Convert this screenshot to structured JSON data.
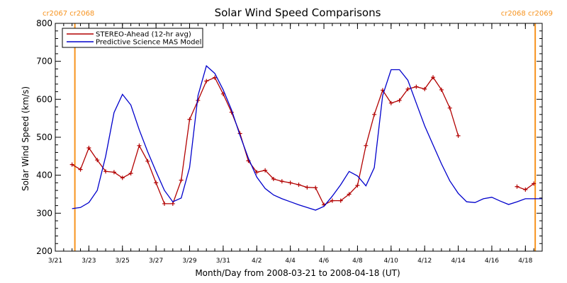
{
  "chart_data": {
    "type": "line",
    "title": "Solar Wind Speed Comparisons",
    "xlabel": "Month/Day from 2008-03-21 to 2008-04-18 (UT)",
    "ylabel": "Solar Wind Speed (km/s)",
    "xlim": [
      "2008-03-21",
      "2008-04-19"
    ],
    "ylim": [
      200,
      800
    ],
    "x_ticks": [
      {
        "date": "2008-03-21",
        "label": "3/21"
      },
      {
        "date": "2008-03-23",
        "label": "3/23"
      },
      {
        "date": "2008-03-25",
        "label": "3/25"
      },
      {
        "date": "2008-03-27",
        "label": "3/27"
      },
      {
        "date": "2008-03-29",
        "label": "3/29"
      },
      {
        "date": "2008-03-31",
        "label": "3/31"
      },
      {
        "date": "2008-04-02",
        "label": "4/2"
      },
      {
        "date": "2008-04-04",
        "label": "4/4"
      },
      {
        "date": "2008-04-06",
        "label": "4/6"
      },
      {
        "date": "2008-04-08",
        "label": "4/8"
      },
      {
        "date": "2008-04-10",
        "label": "4/10"
      },
      {
        "date": "2008-04-12",
        "label": "4/12"
      },
      {
        "date": "2008-04-14",
        "label": "4/14"
      },
      {
        "date": "2008-04-16",
        "label": "4/16"
      },
      {
        "date": "2008-04-18",
        "label": "4/18"
      }
    ],
    "y_ticks": [
      200,
      300,
      400,
      500,
      600,
      700,
      800
    ],
    "legend_position": "top-left",
    "colors": {
      "stereo": "#b20000",
      "model": "#0000cc",
      "cr_line": "#f7931e"
    },
    "cr_boundaries": [
      {
        "date": "2008-03-22 04:00",
        "label": "cr2067 cr2068",
        "align": "left"
      },
      {
        "date": "2008-04-18 14:00",
        "label": "cr2068 cr2069",
        "align": "right"
      }
    ],
    "series": [
      {
        "name": "STEREO-Ahead (12-hr avg)",
        "color": "#b20000",
        "marker": "+",
        "segments": [
          [
            [
              "2008-03-22 00:00",
              428
            ],
            [
              "2008-03-22 12:00",
              415
            ],
            [
              "2008-03-23 00:00",
              472
            ],
            [
              "2008-03-23 12:00",
              440
            ],
            [
              "2008-03-24 00:00",
              410
            ],
            [
              "2008-03-24 12:00",
              408
            ],
            [
              "2008-03-25 00:00",
              393
            ],
            [
              "2008-03-25 12:00",
              405
            ],
            [
              "2008-03-26 00:00",
              478
            ],
            [
              "2008-03-26 12:00",
              437
            ],
            [
              "2008-03-27 00:00",
              380
            ],
            [
              "2008-03-27 12:00",
              325
            ],
            [
              "2008-03-28 00:00",
              325
            ],
            [
              "2008-03-28 12:00",
              387
            ],
            [
              "2008-03-29 00:00",
              547
            ],
            [
              "2008-03-29 12:00",
              597
            ],
            [
              "2008-03-30 00:00",
              648
            ],
            [
              "2008-03-30 12:00",
              657
            ],
            [
              "2008-03-31 00:00",
              614
            ],
            [
              "2008-03-31 12:00",
              566
            ],
            [
              "2008-04-01 00:00",
              510
            ],
            [
              "2008-04-01 12:00",
              438
            ],
            [
              "2008-04-02 00:00",
              408
            ],
            [
              "2008-04-02 12:00",
              413
            ],
            [
              "2008-04-03 00:00",
              390
            ],
            [
              "2008-04-03 12:00",
              384
            ],
            [
              "2008-04-04 00:00",
              380
            ],
            [
              "2008-04-04 12:00",
              375
            ],
            [
              "2008-04-05 00:00",
              368
            ],
            [
              "2008-04-05 12:00",
              367
            ],
            [
              "2008-04-06 00:00",
              322
            ],
            [
              "2008-04-06 12:00",
              333
            ],
            [
              "2008-04-07 00:00",
              333
            ],
            [
              "2008-04-07 12:00",
              350
            ],
            [
              "2008-04-08 00:00",
              373
            ],
            [
              "2008-04-08 12:00",
              478
            ],
            [
              "2008-04-09 00:00",
              560
            ],
            [
              "2008-04-09 12:00",
              624
            ],
            [
              "2008-04-10 00:00",
              590
            ],
            [
              "2008-04-10 12:00",
              597
            ],
            [
              "2008-04-11 00:00",
              627
            ],
            [
              "2008-04-11 12:00",
              633
            ],
            [
              "2008-04-12 00:00",
              627
            ],
            [
              "2008-04-12 12:00",
              658
            ],
            [
              "2008-04-13 00:00",
              625
            ],
            [
              "2008-04-13 12:00",
              577
            ],
            [
              "2008-04-14 00:00",
              504
            ]
          ],
          [
            [
              "2008-04-17 12:00",
              370
            ],
            [
              "2008-04-18 00:00",
              362
            ],
            [
              "2008-04-18 12:00",
              378
            ]
          ]
        ]
      },
      {
        "name": "Predictive Science MAS Model",
        "color": "#0000cc",
        "marker": "none",
        "segments": [
          [
            [
              "2008-03-22 00:00",
              312
            ],
            [
              "2008-03-22 12:00",
              315
            ],
            [
              "2008-03-23 00:00",
              328
            ],
            [
              "2008-03-23 12:00",
              360
            ],
            [
              "2008-03-24 00:00",
              450
            ],
            [
              "2008-03-24 12:00",
              565
            ],
            [
              "2008-03-25 00:00",
              613
            ],
            [
              "2008-03-25 12:00",
              585
            ],
            [
              "2008-03-26 00:00",
              520
            ],
            [
              "2008-03-26 12:00",
              462
            ],
            [
              "2008-03-27 00:00",
              410
            ],
            [
              "2008-03-27 12:00",
              360
            ],
            [
              "2008-03-28 00:00",
              330
            ],
            [
              "2008-03-28 12:00",
              340
            ],
            [
              "2008-03-29 00:00",
              420
            ],
            [
              "2008-03-29 12:00",
              610
            ],
            [
              "2008-03-30 00:00",
              688
            ],
            [
              "2008-03-30 12:00",
              668
            ],
            [
              "2008-03-31 00:00",
              625
            ],
            [
              "2008-03-31 12:00",
              572
            ],
            [
              "2008-04-01 00:00",
              505
            ],
            [
              "2008-04-01 12:00",
              445
            ],
            [
              "2008-04-02 00:00",
              395
            ],
            [
              "2008-04-02 12:00",
              365
            ],
            [
              "2008-04-03 00:00",
              348
            ],
            [
              "2008-04-03 12:00",
              338
            ],
            [
              "2008-04-04 00:00",
              330
            ],
            [
              "2008-04-04 12:00",
              322
            ],
            [
              "2008-04-05 00:00",
              315
            ],
            [
              "2008-04-05 12:00",
              308
            ],
            [
              "2008-04-06 00:00",
              318
            ],
            [
              "2008-04-06 12:00",
              345
            ],
            [
              "2008-04-07 00:00",
              375
            ],
            [
              "2008-04-07 12:00",
              410
            ],
            [
              "2008-04-08 00:00",
              398
            ],
            [
              "2008-04-08 12:00",
              372
            ],
            [
              "2008-04-09 00:00",
              420
            ],
            [
              "2008-04-09 12:00",
              610
            ],
            [
              "2008-04-10 00:00",
              678
            ],
            [
              "2008-04-10 12:00",
              678
            ],
            [
              "2008-04-11 00:00",
              650
            ],
            [
              "2008-04-11 12:00",
              590
            ],
            [
              "2008-04-12 00:00",
              530
            ],
            [
              "2008-04-12 12:00",
              480
            ],
            [
              "2008-04-13 00:00",
              430
            ],
            [
              "2008-04-13 12:00",
              385
            ],
            [
              "2008-04-14 00:00",
              352
            ],
            [
              "2008-04-14 12:00",
              330
            ],
            [
              "2008-04-15 00:00",
              328
            ],
            [
              "2008-04-15 12:00",
              338
            ],
            [
              "2008-04-16 00:00",
              342
            ],
            [
              "2008-04-16 12:00",
              332
            ],
            [
              "2008-04-17 00:00",
              323
            ],
            [
              "2008-04-17 12:00",
              330
            ],
            [
              "2008-04-18 00:00",
              338
            ],
            [
              "2008-04-18 12:00",
              338
            ],
            [
              "2008-04-19 00:00",
              338
            ]
          ]
        ]
      }
    ]
  }
}
